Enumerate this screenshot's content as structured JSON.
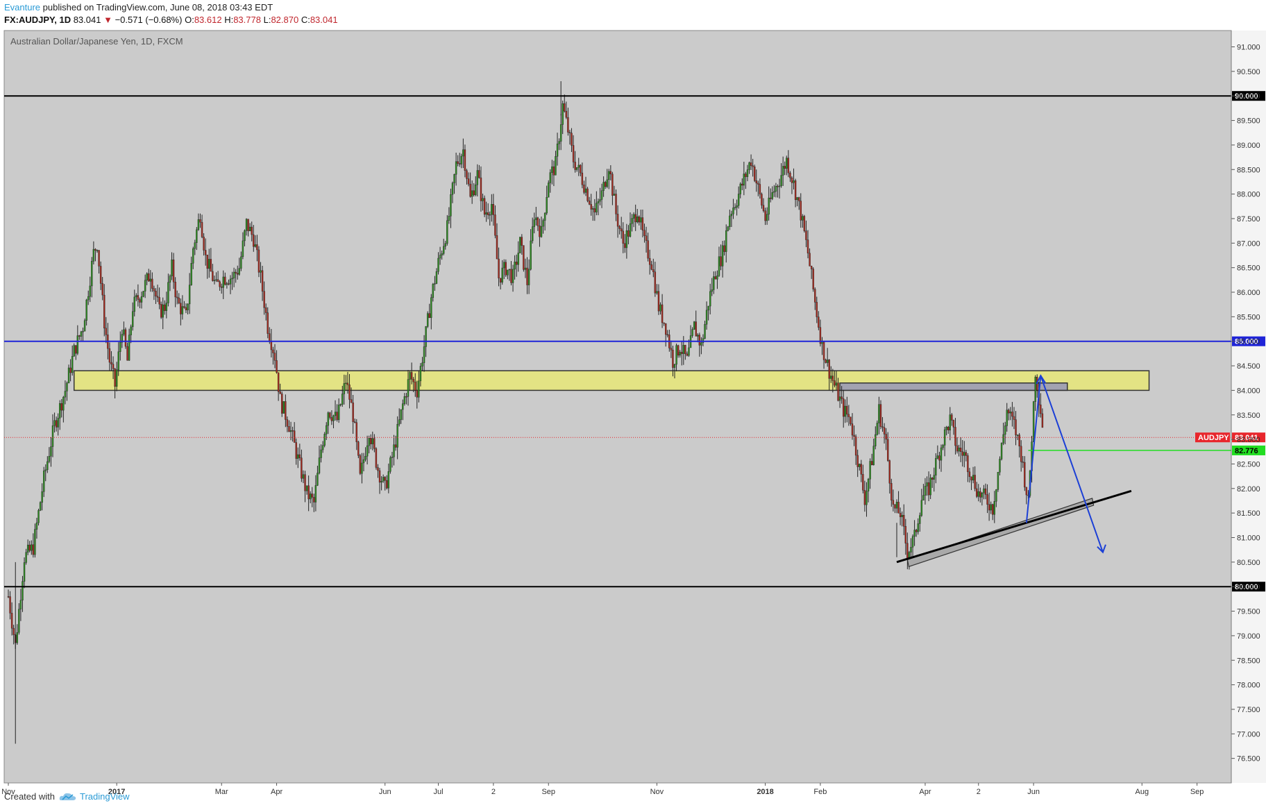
{
  "header": {
    "author": "Evanture",
    "published_text": "published on TradingView.com, June 08, 2018 03:43 EDT",
    "symbol": "FX:AUDJPY, 1D",
    "last": "83.041",
    "change": "−0.571 (−0.68%)",
    "open_label": "O:",
    "open": "83.612",
    "high_label": "H:",
    "high": "83.778",
    "low_label": "L:",
    "low": "82.870",
    "close_label": "C:",
    "close": "83.041"
  },
  "footer": {
    "created_with": "Created with",
    "brand": "TradingView",
    "logo_icon": "tradingview-cloud-icon"
  },
  "chart_data": {
    "type": "candlestick",
    "title": "Australian Dollar/Japanese Yen, 1D, FXCM",
    "ylim": [
      76.0,
      91.0
    ],
    "y_ticks": [
      "91.000",
      "90.500",
      "90.000",
      "89.500",
      "89.000",
      "88.500",
      "88.000",
      "87.500",
      "87.000",
      "86.500",
      "86.000",
      "85.500",
      "85.000",
      "84.500",
      "84.000",
      "83.500",
      "83.000",
      "82.500",
      "82.000",
      "81.500",
      "81.000",
      "80.500",
      "80.000",
      "79.500",
      "79.000",
      "78.500",
      "78.000",
      "77.500",
      "77.000",
      "76.500"
    ],
    "x_ticks": [
      {
        "label": "Nov",
        "day": 0
      },
      {
        "label": "2017",
        "day": 61
      },
      {
        "label": "Mar",
        "day": 120
      },
      {
        "label": "Apr",
        "day": 151
      },
      {
        "label": "Jun",
        "day": 212
      },
      {
        "label": "Jul",
        "day": 242
      },
      {
        "label": "2",
        "day": 273
      },
      {
        "label": "Sep",
        "day": 304
      },
      {
        "label": "Nov",
        "day": 365
      },
      {
        "label": "2018",
        "day": 426
      },
      {
        "label": "Feb",
        "day": 457
      },
      {
        "label": "Apr",
        "day": 516
      },
      {
        "label": "2",
        "day": 546
      },
      {
        "label": "Jun",
        "day": 577
      },
      {
        "label": "Aug",
        "day": 638
      },
      {
        "label": "Sep",
        "day": 669
      }
    ],
    "horizontal_lines": [
      {
        "value": 90.0,
        "label": "90.000",
        "color": "#000000"
      },
      {
        "value": 85.0,
        "label": "85.000",
        "color": "#1f24d8"
      },
      {
        "value": 80.0,
        "label": "80.000",
        "color": "#000000"
      },
      {
        "value": 82.776,
        "label": "82.776",
        "color": "#22dd22"
      }
    ],
    "last_price": {
      "value": 83.041,
      "label": "83.041",
      "symbol": "AUDJPY",
      "color": "#e8262c"
    },
    "zones": [
      {
        "day_start": 37,
        "day_end": 642,
        "top": 84.4,
        "bottom": 84.0,
        "color": "#e8e878"
      },
      {
        "day_start": 468,
        "day_end": 596,
        "top": 84.15,
        "bottom": 84.0,
        "color": "#8c8cc0"
      }
    ],
    "trendline": {
      "start": {
        "day": 500,
        "value": 80.5
      },
      "end": {
        "day": 632,
        "value": 81.95
      }
    },
    "channel": {
      "start": {
        "day": 506,
        "value": 80.55
      },
      "end": {
        "day": 610,
        "value": 81.8
      }
    },
    "projection": [
      {
        "day": 573,
        "value": 81.3
      },
      {
        "day": 581,
        "value": 84.3
      },
      {
        "day": 616,
        "value": 80.7
      }
    ],
    "price_path": [
      [
        0,
        79.8
      ],
      [
        4,
        78.8
      ],
      [
        9,
        80.6
      ],
      [
        14,
        80.8
      ],
      [
        20,
        82.2
      ],
      [
        26,
        83.3
      ],
      [
        32,
        84.0
      ],
      [
        37,
        84.8
      ],
      [
        42,
        85.3
      ],
      [
        48,
        86.8
      ],
      [
        50,
        87.0
      ],
      [
        54,
        85.4
      ],
      [
        57,
        84.6
      ],
      [
        60,
        84.1
      ],
      [
        64,
        85.3
      ],
      [
        67,
        84.6
      ],
      [
        70,
        85.7
      ],
      [
        75,
        86.0
      ],
      [
        80,
        86.4
      ],
      [
        85,
        85.6
      ],
      [
        88,
        85.7
      ],
      [
        92,
        86.5
      ],
      [
        95,
        85.8
      ],
      [
        100,
        85.5
      ],
      [
        104,
        86.9
      ],
      [
        108,
        87.6
      ],
      [
        111,
        86.7
      ],
      [
        117,
        86.1
      ],
      [
        121,
        86.3
      ],
      [
        126,
        86.3
      ],
      [
        130,
        86.5
      ],
      [
        134,
        87.4
      ],
      [
        138,
        87.1
      ],
      [
        142,
        86.3
      ],
      [
        146,
        85.3
      ],
      [
        150,
        84.7
      ],
      [
        153,
        83.8
      ],
      [
        158,
        83.3
      ],
      [
        163,
        82.6
      ],
      [
        168,
        81.9
      ],
      [
        172,
        81.7
      ],
      [
        176,
        82.8
      ],
      [
        180,
        83.6
      ],
      [
        185,
        83.4
      ],
      [
        190,
        84.2
      ],
      [
        194,
        83.5
      ],
      [
        198,
        82.2
      ],
      [
        203,
        83.2
      ],
      [
        208,
        82.4
      ],
      [
        212,
        82.0
      ],
      [
        217,
        82.8
      ],
      [
        222,
        83.7
      ],
      [
        226,
        84.3
      ],
      [
        230,
        84.0
      ],
      [
        234,
        84.9
      ],
      [
        238,
        85.9
      ],
      [
        242,
        86.6
      ],
      [
        247,
        87.3
      ],
      [
        252,
        88.6
      ],
      [
        256,
        88.9
      ],
      [
        260,
        87.9
      ],
      [
        264,
        88.4
      ],
      [
        268,
        87.6
      ],
      [
        272,
        87.8
      ],
      [
        276,
        86.3
      ],
      [
        280,
        86.5
      ],
      [
        284,
        86.3
      ],
      [
        288,
        87.0
      ],
      [
        292,
        86.2
      ],
      [
        296,
        87.6
      ],
      [
        300,
        87.2
      ],
      [
        304,
        88.3
      ],
      [
        308,
        88.6
      ],
      [
        312,
        89.8
      ],
      [
        315,
        89.3
      ],
      [
        318,
        88.7
      ],
      [
        322,
        88.4
      ],
      [
        326,
        88.0
      ],
      [
        330,
        87.6
      ],
      [
        334,
        88.0
      ],
      [
        338,
        88.6
      ],
      [
        342,
        87.6
      ],
      [
        346,
        87.0
      ],
      [
        350,
        87.3
      ],
      [
        354,
        87.7
      ],
      [
        358,
        87.0
      ],
      [
        362,
        86.6
      ],
      [
        366,
        85.7
      ],
      [
        370,
        85.3
      ],
      [
        374,
        84.6
      ],
      [
        378,
        84.9
      ],
      [
        382,
        84.6
      ],
      [
        386,
        85.3
      ],
      [
        390,
        84.9
      ],
      [
        394,
        85.8
      ],
      [
        398,
        86.4
      ],
      [
        402,
        86.8
      ],
      [
        406,
        87.6
      ],
      [
        410,
        87.9
      ],
      [
        414,
        88.3
      ],
      [
        418,
        88.7
      ],
      [
        422,
        88.1
      ],
      [
        426,
        87.5
      ],
      [
        430,
        88.0
      ],
      [
        434,
        88.3
      ],
      [
        438,
        88.7
      ],
      [
        442,
        88.2
      ],
      [
        446,
        87.6
      ],
      [
        450,
        86.8
      ],
      [
        454,
        85.8
      ],
      [
        458,
        84.9
      ],
      [
        462,
        84.4
      ],
      [
        466,
        84.0
      ],
      [
        470,
        83.6
      ],
      [
        474,
        83.4
      ],
      [
        478,
        82.6
      ],
      [
        482,
        81.8
      ],
      [
        486,
        82.6
      ],
      [
        490,
        83.6
      ],
      [
        494,
        82.9
      ],
      [
        498,
        81.6
      ],
      [
        502,
        81.5
      ],
      [
        506,
        80.7
      ],
      [
        510,
        81.0
      ],
      [
        514,
        81.8
      ],
      [
        518,
        82.0
      ],
      [
        522,
        82.5
      ],
      [
        526,
        83.0
      ],
      [
        530,
        83.4
      ],
      [
        534,
        82.8
      ],
      [
        538,
        82.7
      ],
      [
        542,
        82.3
      ],
      [
        546,
        81.9
      ],
      [
        550,
        81.8
      ],
      [
        554,
        81.6
      ],
      [
        558,
        82.6
      ],
      [
        562,
        83.6
      ],
      [
        566,
        83.3
      ],
      [
        570,
        82.7
      ],
      [
        574,
        81.7
      ],
      [
        578,
        84.4
      ],
      [
        581,
        83.6
      ],
      [
        583,
        83.04
      ]
    ]
  }
}
